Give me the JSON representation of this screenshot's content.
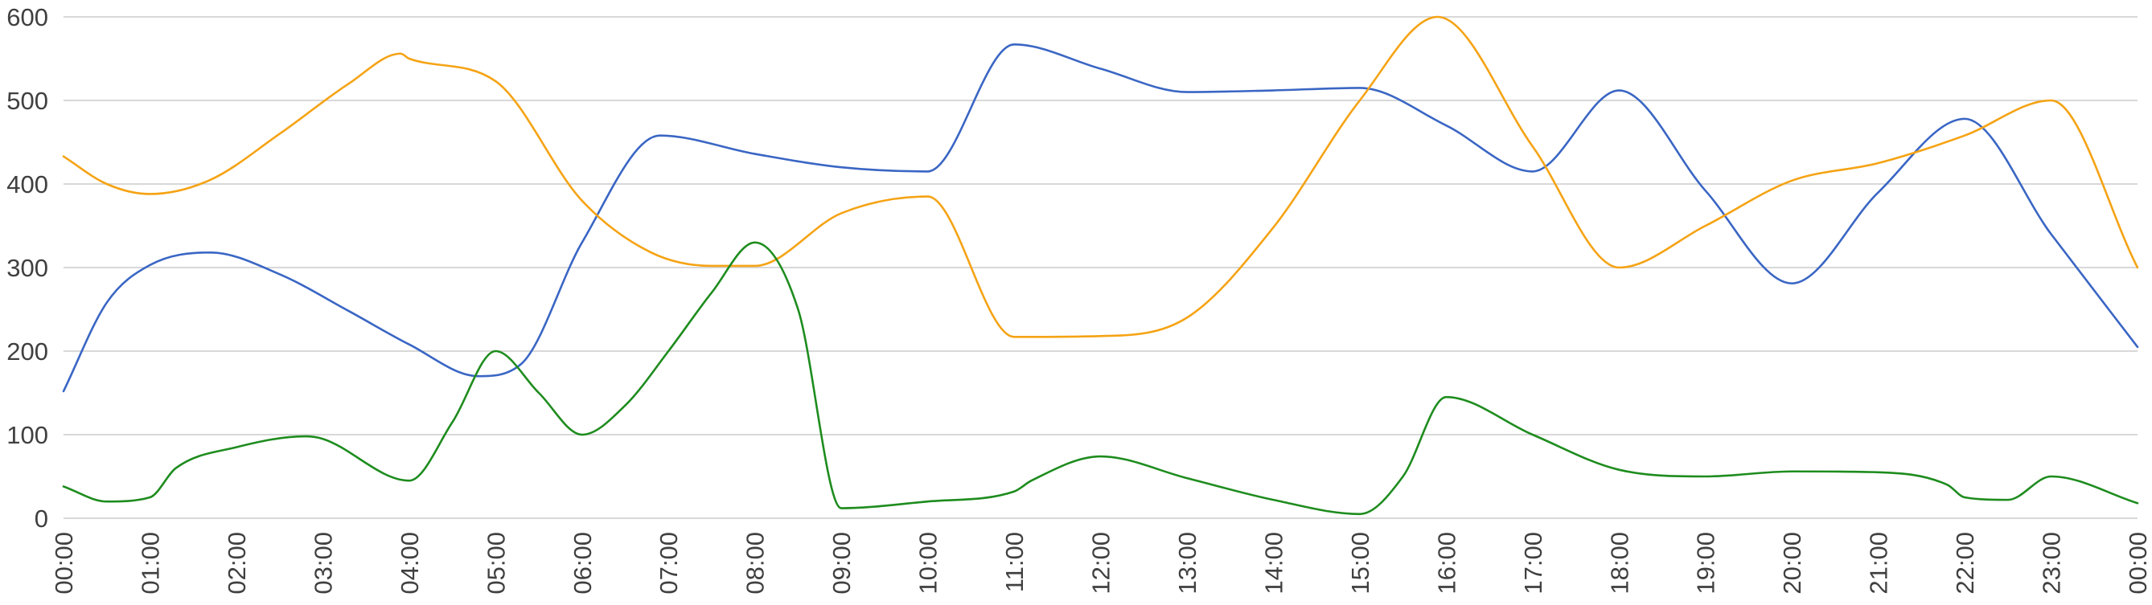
{
  "chart_data": {
    "type": "line",
    "title": "",
    "xlabel": "",
    "ylabel": "",
    "ylim": [
      0,
      600
    ],
    "yticks": [
      "0",
      "100",
      "200",
      "300",
      "400",
      "500",
      "600"
    ],
    "xticks": [
      "00:00",
      "01:00",
      "02:00",
      "03:00",
      "04:00",
      "05:00",
      "06:00",
      "07:00",
      "08:00",
      "09:00",
      "10:00",
      "11:00",
      "12:00",
      "13:00",
      "14:00",
      "15:00",
      "16:00",
      "17:00",
      "18:00",
      "19:00",
      "20:00",
      "21:00",
      "22:00",
      "23:00",
      "00:00"
    ],
    "grid": true,
    "legend": "none",
    "series": [
      {
        "color": "#3a66c4",
        "x": [
          0,
          0.5,
          1,
          1.7,
          2.5,
          3.3,
          4,
          4.8,
          5.3,
          6,
          6.9,
          8,
          9,
          10,
          11,
          12,
          13,
          14,
          15,
          16,
          17,
          18,
          19,
          20,
          21,
          22,
          23,
          24
        ],
        "y": [
          152,
          258,
          303,
          318,
          292,
          248,
          208,
          170,
          185,
          330,
          458,
          436,
          420,
          415,
          567,
          538,
          510,
          512,
          515,
          470,
          415,
          512,
          392,
          281,
          390,
          478,
          340,
          205
        ]
      },
      {
        "color": "#f5a314",
        "x": [
          0,
          0.5,
          1,
          1.7,
          2.5,
          3.3,
          3.9,
          4,
          5,
          6,
          6.8,
          7.5,
          8,
          9,
          10,
          11,
          12,
          13,
          14,
          15,
          15.9,
          17,
          18,
          19,
          20,
          21,
          22,
          23,
          24
        ],
        "y": [
          433,
          400,
          388,
          405,
          460,
          520,
          556,
          550,
          523,
          380,
          318,
          302,
          302,
          365,
          385,
          217,
          218,
          240,
          348,
          500,
          600,
          445,
          300,
          350,
          404,
          425,
          458,
          500,
          300
        ]
      },
      {
        "color": "#1e8c1e",
        "x": [
          0,
          0.5,
          1,
          1.3,
          2,
          2.8,
          3,
          4,
          4.5,
          5,
          5.5,
          6,
          6.5,
          7,
          7.5,
          8,
          8.5,
          9,
          10,
          11,
          11.2,
          12,
          13,
          14,
          15,
          15.5,
          16,
          17,
          18,
          19,
          20,
          21,
          21.8,
          22,
          22.5,
          23,
          24
        ],
        "y": [
          38,
          20,
          25,
          60,
          85,
          98,
          95,
          45,
          115,
          200,
          150,
          100,
          135,
          200,
          270,
          330,
          250,
          12,
          20,
          32,
          45,
          74,
          48,
          22,
          5,
          50,
          145,
          100,
          58,
          50,
          56,
          55,
          40,
          25,
          22,
          50,
          18
        ]
      }
    ]
  }
}
